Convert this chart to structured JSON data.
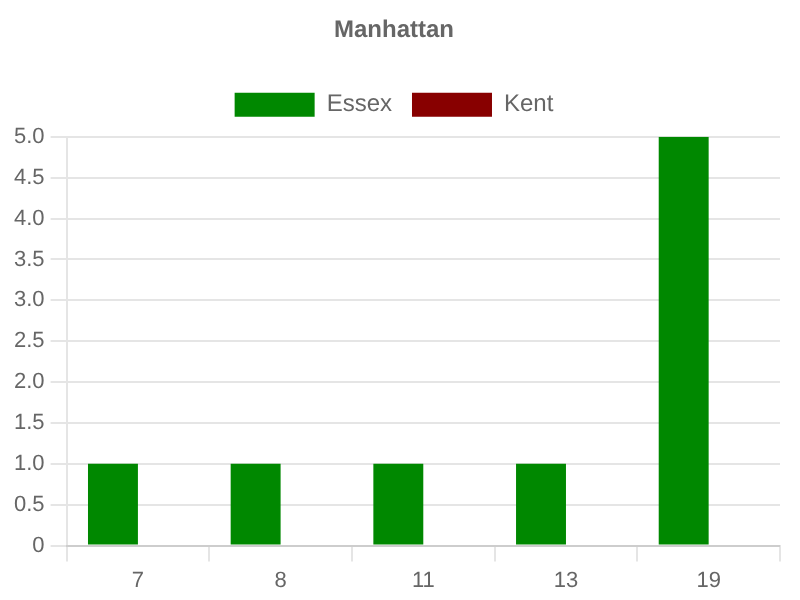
{
  "chart_data": {
    "type": "bar",
    "title": "Manhattan",
    "categories": [
      "7",
      "8",
      "11",
      "13",
      "19"
    ],
    "series": [
      {
        "name": "Essex",
        "color": "#008800",
        "values": [
          1,
          1,
          1,
          1,
          5
        ]
      },
      {
        "name": "Kent",
        "color": "#880000",
        "values": [
          0,
          0,
          0,
          0,
          0
        ]
      }
    ],
    "ylim": [
      0,
      5
    ],
    "yticks": [
      0,
      {
        "value": 0.5,
        "label": "0.5"
      },
      {
        "value": 1,
        "label": "1.0"
      },
      {
        "value": 1.5,
        "label": "1.5"
      },
      {
        "value": 2,
        "label": "2.0"
      },
      {
        "value": 2.5,
        "label": "2.5"
      },
      {
        "value": 3,
        "label": "3.0"
      },
      {
        "value": 3.5,
        "label": "3.5"
      },
      {
        "value": 4,
        "label": "4.0"
      },
      {
        "value": 4.5,
        "label": "4.5"
      },
      {
        "value": 5,
        "label": "5.0"
      }
    ],
    "grid": "y",
    "legend": "top"
  }
}
